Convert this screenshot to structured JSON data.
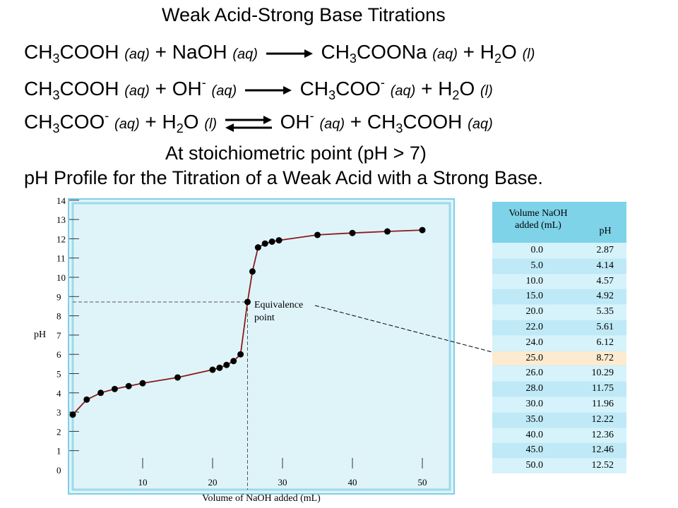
{
  "title": "Weak Acid-Strong Base Titrations",
  "eq1": {
    "r1": "CH",
    "r1s": "3",
    "r1b": "COOH",
    "st1": "(aq)",
    "plus1": "+ NaOH",
    "st2": "(aq)",
    "p1": "CH",
    "p1s": "3",
    "p1b": "COONa",
    "st3": "(aq)",
    "plus2": "+ H",
    "p2s": "2",
    "p2b": "O",
    "st4": "(l)"
  },
  "eq2": {
    "r1": "CH",
    "r1s": "3",
    "r1b": "COOH",
    "st1": "(aq)",
    "plus1": "+ OH",
    "sup1": "-",
    "st2": "(aq)",
    "p1": "CH",
    "p1s": "3",
    "p1b": "COO",
    "sup2": "-",
    "st3": "(aq)",
    "plus2": "+ H",
    "p2s": "2",
    "p2b": "O",
    "st4": "(l)"
  },
  "eq3": {
    "r1": "CH",
    "r1s": "3",
    "r1b": "COO",
    "sup1": "-",
    "st1": "(aq)",
    "plus1": "+ H",
    "r2s": "2",
    "r2b": "O",
    "st2": "(l)",
    "p1": "OH",
    "sup2": "-",
    "st3": "(aq)",
    "plus2": "+ CH",
    "p2s": "3",
    "p2b": "COOH",
    "st4": "(aq)"
  },
  "stoich_note": "At stoichiometric point (pH > 7)",
  "profile_title": "pH Profile for the Titration of a Weak Acid with a Strong Base.",
  "colors": {
    "plot_bg": "#dff4f9",
    "plot_border": "#9ed9ec",
    "curve": "#8b1a1a",
    "table_header": "#7ed3e8",
    "highlight_row": "#fcebd0"
  },
  "chart_data": {
    "type": "line",
    "xlabel": "Volume of NaOH added (mL)",
    "ylabel": "pH",
    "xlim": [
      0,
      55
    ],
    "ylim": [
      0,
      14
    ],
    "x_ticks": [
      10,
      20,
      30,
      40,
      50
    ],
    "y_ticks": [
      0,
      1,
      2,
      3,
      4,
      5,
      6,
      7,
      8,
      9,
      10,
      11,
      12,
      13,
      14
    ],
    "annotation": {
      "line1": "Equivalence",
      "line2": "point",
      "x": 25.0,
      "y": 8.72
    },
    "x": [
      0.0,
      2.0,
      4.0,
      6.0,
      8.0,
      10.0,
      15.0,
      20.0,
      21.0,
      22.0,
      23.0,
      24.0,
      25.0,
      25.7,
      26.5,
      27.5,
      28.5,
      29.5,
      35.0,
      40.0,
      45.0,
      50.0
    ],
    "y": [
      2.87,
      3.65,
      4.0,
      4.2,
      4.35,
      4.5,
      4.8,
      5.2,
      5.3,
      5.45,
      5.65,
      6.0,
      8.72,
      10.3,
      11.55,
      11.75,
      11.85,
      11.92,
      12.2,
      12.3,
      12.38,
      12.45
    ],
    "table": {
      "col1_header": "Volume NaOH added (mL)",
      "col1_line1": "Volume NaOH",
      "col1_line2": "added (mL)",
      "col2_header": "pH",
      "rows": [
        [
          "0.0",
          "2.87"
        ],
        [
          "5.0",
          "4.14"
        ],
        [
          "10.0",
          "4.57"
        ],
        [
          "15.0",
          "4.92"
        ],
        [
          "20.0",
          "5.35"
        ],
        [
          "22.0",
          "5.61"
        ],
        [
          "24.0",
          "6.12"
        ],
        [
          "25.0",
          "8.72"
        ],
        [
          "26.0",
          "10.29"
        ],
        [
          "28.0",
          "11.75"
        ],
        [
          "30.0",
          "11.96"
        ],
        [
          "35.0",
          "12.22"
        ],
        [
          "40.0",
          "12.36"
        ],
        [
          "45.0",
          "12.46"
        ],
        [
          "50.0",
          "12.52"
        ]
      ],
      "highlight_index": 7
    }
  }
}
